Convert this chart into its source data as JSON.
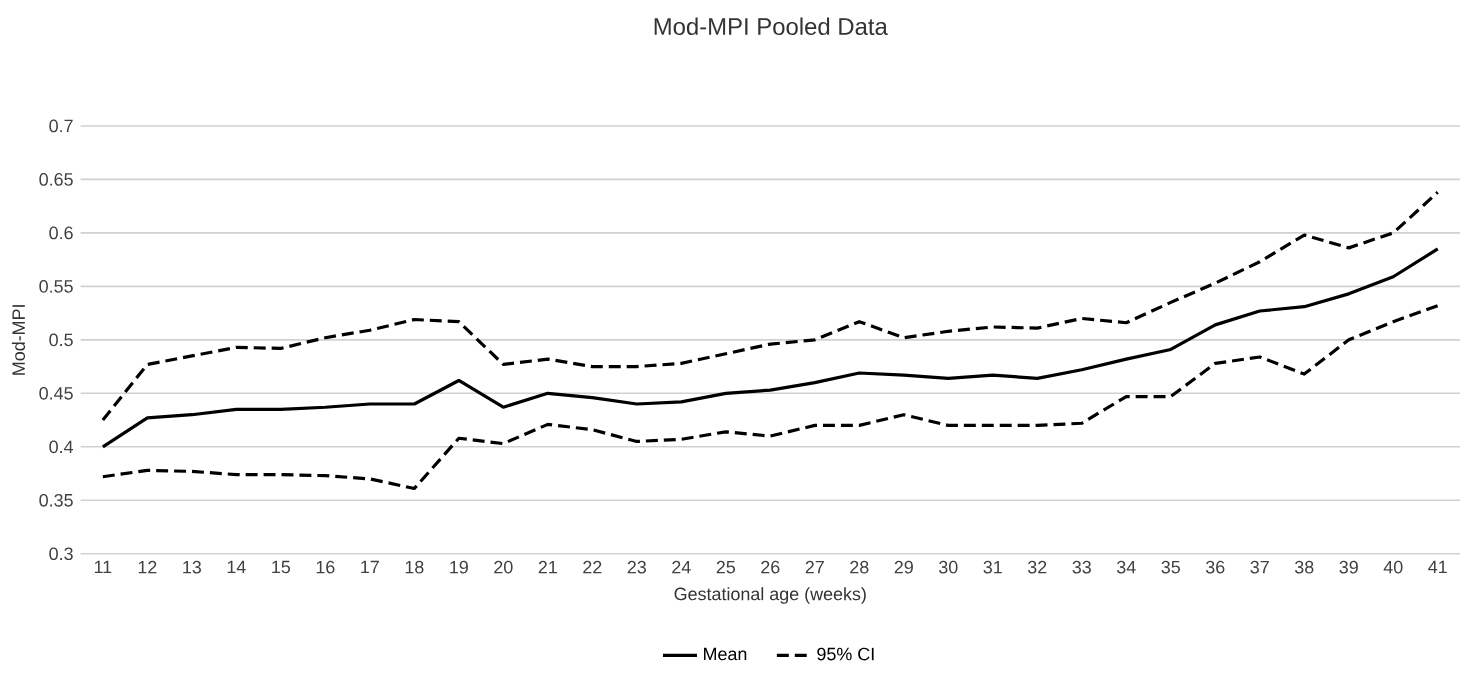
{
  "chart_data": {
    "type": "line",
    "title": "Mod-MPI Pooled Data",
    "xlabel": "Gestational age (weeks)",
    "ylabel": "Mod-MPI",
    "categories": [
      "11",
      "12",
      "13",
      "14",
      "15",
      "16",
      "17",
      "18",
      "19",
      "20",
      "21",
      "22",
      "23",
      "24",
      "25",
      "26",
      "27",
      "28",
      "29",
      "30",
      "31",
      "32",
      "33",
      "34",
      "35",
      "36",
      "37",
      "38",
      "39",
      "40",
      "41"
    ],
    "series": [
      {
        "name": "Mean",
        "color": "#000000",
        "line_style": "solid",
        "values": [
          0.4,
          0.427,
          0.43,
          0.435,
          0.435,
          0.437,
          0.44,
          0.44,
          0.462,
          0.437,
          0.45,
          0.446,
          0.44,
          0.442,
          0.45,
          0.453,
          0.46,
          0.469,
          0.467,
          0.464,
          0.467,
          0.464,
          0.472,
          0.482,
          0.491,
          0.514,
          0.527,
          0.531,
          0.543,
          0.559,
          0.585
        ]
      },
      {
        "name": "95% CI",
        "color": "#000000",
        "line_style": "dashed",
        "values": [
          0.425,
          0.477,
          0.485,
          0.493,
          0.492,
          0.502,
          0.509,
          0.519,
          0.517,
          0.477,
          0.482,
          0.475,
          0.475,
          0.478,
          0.487,
          0.496,
          0.5,
          0.517,
          0.502,
          0.508,
          0.512,
          0.511,
          0.52,
          0.516,
          0.535,
          0.553,
          0.573,
          0.598,
          0.586,
          0.6,
          0.638
        ]
      },
      {
        "color": "#000000",
        "line_style": "dashed",
        "values": [
          0.372,
          0.378,
          0.377,
          0.374,
          0.374,
          0.373,
          0.37,
          0.361,
          0.408,
          0.403,
          0.421,
          0.416,
          0.405,
          0.407,
          0.414,
          0.41,
          0.42,
          0.42,
          0.43,
          0.42,
          0.42,
          0.42,
          0.422,
          0.447,
          0.447,
          0.478,
          0.484,
          0.468,
          0.5,
          0.517,
          0.532
        ]
      }
    ],
    "ylim": [
      0.3,
      0.7
    ],
    "yticks": [
      0.3,
      0.35,
      0.4,
      0.45,
      0.5,
      0.55,
      0.6,
      0.65,
      0.7
    ],
    "grid": "y",
    "legend": "bottom",
    "marker": "none"
  }
}
